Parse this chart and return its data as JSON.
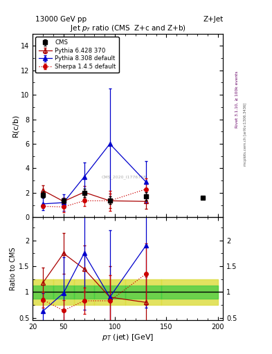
{
  "title_top": "13000 GeV pp",
  "title_right": "Z+Jet",
  "main_title": "Jet p_{T} ratio (CMS  Z+c and Z+b)",
  "ylabel_main": "R(c/b)",
  "ylabel_ratio": "Ratio to CMS",
  "xlabel": "p_{T} (jet) [GeV]",
  "watermark": "CMS_2020_I1776758",
  "rivet_label": "Rivet 3.1.10, ≥ 100k events",
  "mcplots_label": "mcplots.cern.ch [arXiv:1306.3436]",
  "cms_x": [
    30,
    50,
    70,
    95,
    130,
    185
  ],
  "cms_y": [
    1.85,
    1.35,
    2.0,
    1.4,
    1.7,
    1.6
  ],
  "cms_yerr": [
    0.25,
    0.2,
    0.35,
    0.3,
    0.35,
    0.0
  ],
  "pythia6_x": [
    30,
    50,
    70,
    95,
    130
  ],
  "pythia6_y": [
    2.2,
    1.3,
    2.05,
    1.35,
    1.3
  ],
  "pythia6_yerr": [
    0.4,
    0.3,
    0.5,
    0.6,
    0.6
  ],
  "pythia8_x": [
    30,
    50,
    70,
    95,
    130
  ],
  "pythia8_y": [
    1.1,
    1.2,
    3.3,
    6.0,
    2.9
  ],
  "pythia8_yerr": [
    0.5,
    0.7,
    1.2,
    4.5,
    1.7
  ],
  "sherpa_x": [
    30,
    50,
    70,
    95,
    130
  ],
  "sherpa_y": [
    0.9,
    0.85,
    1.35,
    1.35,
    2.3
  ],
  "sherpa_yerr": [
    0.15,
    0.45,
    0.45,
    0.8,
    0.9
  ],
  "ratio_pythia6_x": [
    30,
    50,
    70,
    95,
    130
  ],
  "ratio_pythia6_y": [
    1.18,
    1.75,
    1.45,
    0.9,
    0.8
  ],
  "ratio_pythia6_yerr": [
    0.3,
    0.4,
    0.45,
    0.6,
    0.5
  ],
  "ratio_pythia8_x": [
    30,
    50,
    70,
    95,
    130
  ],
  "ratio_pythia8_y": [
    0.63,
    0.98,
    1.75,
    0.9,
    1.9
  ],
  "ratio_pythia8_yerr": [
    0.35,
    0.7,
    1.1,
    1.3,
    1.2
  ],
  "ratio_sherpa_x": [
    30,
    50,
    70,
    95,
    130
  ],
  "ratio_sherpa_y": [
    0.85,
    0.64,
    0.83,
    0.83,
    1.35
  ],
  "ratio_sherpa_yerr": [
    0.15,
    0.2,
    0.25,
    0.5,
    0.6
  ],
  "band_edges": [
    20,
    40,
    60,
    80,
    110,
    145,
    200
  ],
  "band_green_lo": [
    0.87,
    0.87,
    0.87,
    0.87,
    0.87,
    0.87
  ],
  "band_green_hi": [
    1.13,
    1.13,
    1.13,
    1.13,
    1.13,
    1.13
  ],
  "band_yellow_lo": [
    0.75,
    0.75,
    0.75,
    0.75,
    0.75,
    0.75
  ],
  "band_yellow_hi": [
    1.25,
    1.25,
    1.25,
    1.25,
    1.25,
    1.25
  ],
  "xlim": [
    20,
    205
  ],
  "ylim_main": [
    0,
    15
  ],
  "ylim_ratio": [
    0.45,
    2.45
  ],
  "color_cms": "#000000",
  "color_pythia6": "#aa0000",
  "color_pythia8": "#0000cc",
  "color_sherpa": "#cc0000",
  "color_green_band": "#44cc44",
  "color_yellow_band": "#dddd44"
}
